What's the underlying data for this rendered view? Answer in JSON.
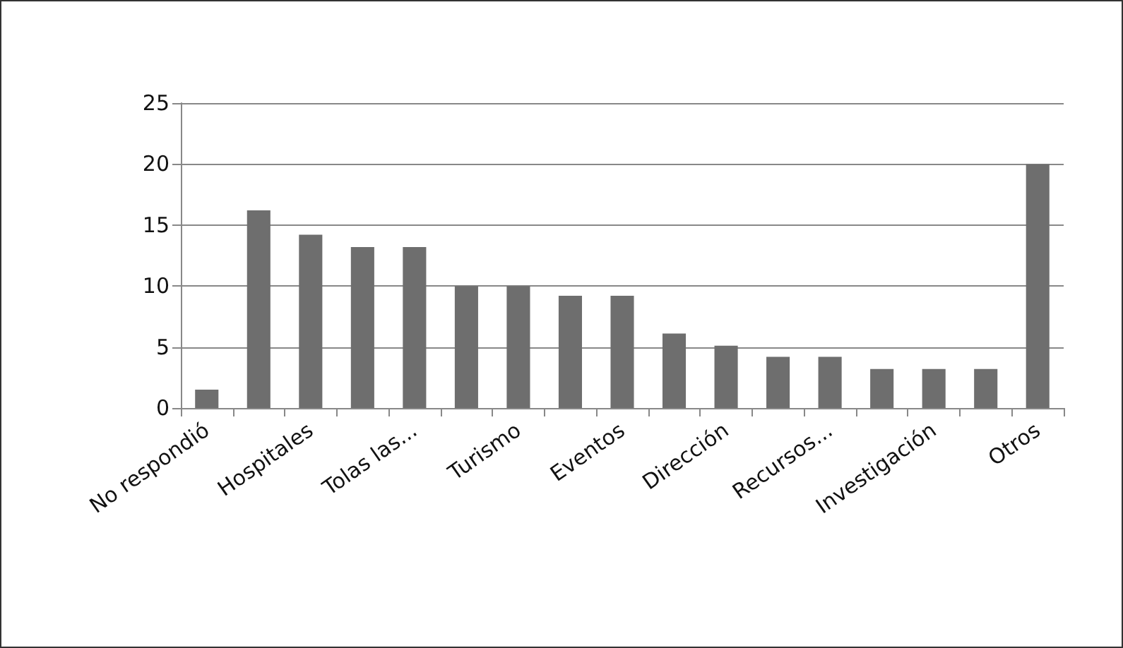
{
  "chart_data": {
    "type": "bar",
    "categories": [
      "No respondió",
      null,
      "Hospitales",
      null,
      "Tolas las...",
      null,
      "Turismo",
      null,
      "Eventos",
      null,
      "Dirección",
      null,
      "Recursos...",
      null,
      "Investigación",
      null,
      "Otros"
    ],
    "values": [
      1.5,
      16.2,
      14.2,
      13.2,
      13.2,
      10,
      10,
      9.2,
      9.2,
      6.1,
      5.1,
      4.2,
      4.2,
      3.2,
      3.2,
      3.2,
      20
    ],
    "color": "#6e6e6e",
    "ylim": [
      0,
      25
    ],
    "yticks": [
      0,
      5,
      10,
      15,
      20,
      25
    ],
    "grid": "y"
  }
}
